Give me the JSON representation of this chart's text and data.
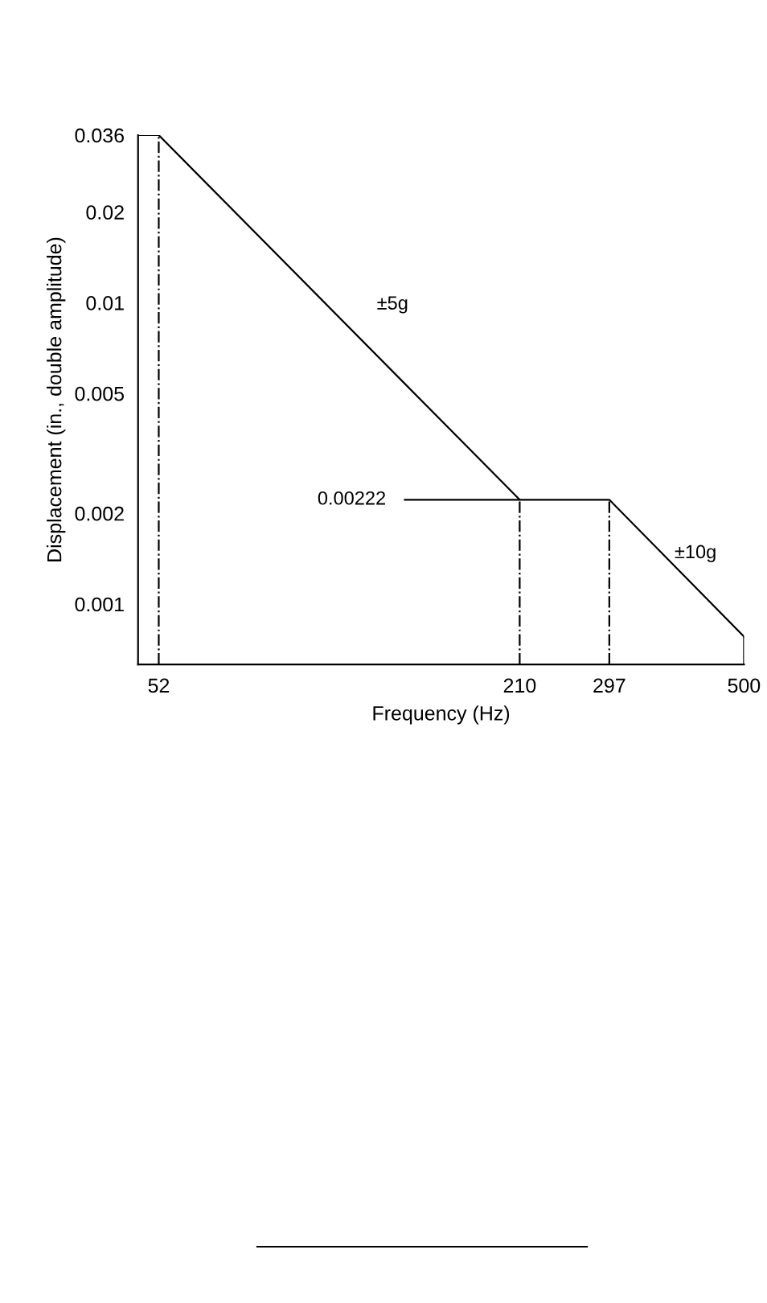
{
  "chart_data": {
    "type": "line",
    "xlabel": "Frequency (Hz)",
    "ylabel": "Displacement (in., double amplitude)",
    "x": [
      48,
      52,
      210,
      297,
      500
    ],
    "series": [
      {
        "color": "#000000",
        "values": [
          0.036,
          0.036,
          0.00222,
          0.00222,
          0.00078
        ]
      }
    ],
    "log": "xy",
    "xlim": [
      48,
      500
    ],
    "ylim": [
      0.00063,
      0.036
    ],
    "xticks": [
      52,
      210,
      297,
      500
    ],
    "yticks": [
      0.001,
      0.002,
      0.005,
      0.01,
      0.02,
      0.036
    ],
    "ref_lines": [
      {
        "axis": "x",
        "value": 52,
        "line_style": "dashed",
        "color": "#000000"
      },
      {
        "axis": "x",
        "value": 210,
        "line_style": "dashed",
        "color": "#000000"
      },
      {
        "axis": "x",
        "value": 297,
        "line_style": "dashed",
        "color": "#000000"
      },
      {
        "axis": "y",
        "value": 0.00222,
        "label": "0.00222",
        "line_style": "solid",
        "color": "#000000"
      }
    ],
    "annotations": [
      "±5g",
      "±10g"
    ],
    "grid": false,
    "legend": false,
    "marker": "none",
    "line_style": "solid"
  }
}
